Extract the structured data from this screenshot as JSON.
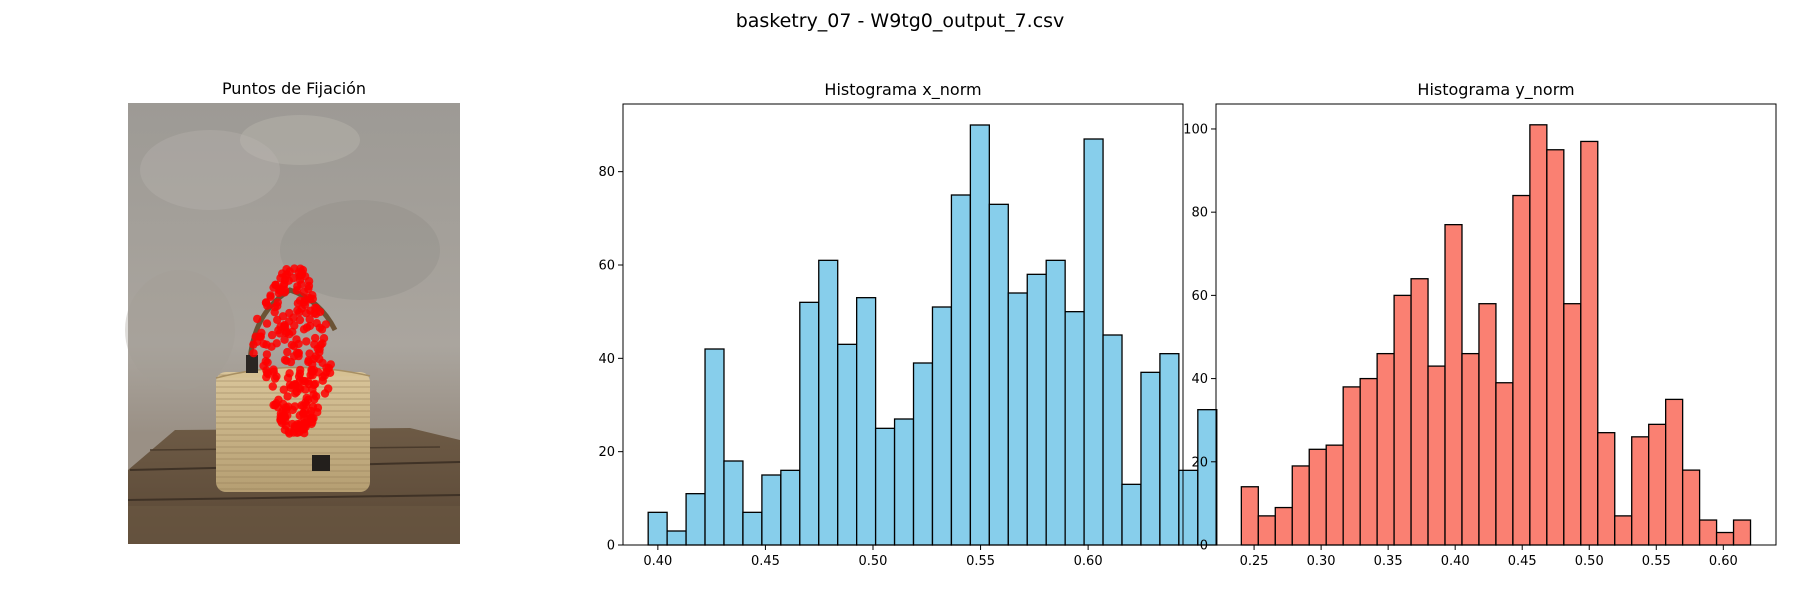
{
  "figure": {
    "suptitle": "basketry_07 - W9tg0_output_7.csv"
  },
  "image_panel": {
    "title": "Puntos de Fijación"
  },
  "chart_data": [
    {
      "type": "bar",
      "title": "Histograma x_norm",
      "xlabel": "",
      "ylabel": "",
      "color": "#87CEEB",
      "edge_color": "#000000",
      "bin_start": 0.3955,
      "bin_width": 0.00881,
      "values": [
        7,
        3,
        11,
        42,
        18,
        7,
        15,
        16,
        52,
        61,
        43,
        53,
        25,
        27,
        39,
        51,
        75,
        90,
        73,
        54,
        58,
        61,
        50,
        87,
        45,
        13,
        37,
        41,
        16,
        29
      ],
      "xlim": [
        0.3838,
        0.6441
      ],
      "ylim": [
        0,
        94.5
      ],
      "xticks": [
        0.4,
        0.45,
        0.5,
        0.55,
        0.6
      ],
      "xtick_labels": [
        "0.40",
        "0.45",
        "0.50",
        "0.55",
        "0.60"
      ],
      "yticks": [
        0,
        20,
        40,
        60,
        80
      ],
      "ytick_labels": [
        "0",
        "20",
        "40",
        "60",
        "80"
      ],
      "grid": false
    },
    {
      "type": "bar",
      "title": "Histograma y_norm",
      "xlabel": "",
      "ylabel": "",
      "color": "#FA8072",
      "edge_color": "#000000",
      "bin_start": 0.2405,
      "bin_width": 0.01266,
      "values": [
        14,
        7,
        9,
        19,
        23,
        24,
        38,
        40,
        46,
        60,
        64,
        43,
        77,
        46,
        58,
        39,
        84,
        101,
        95,
        58,
        97,
        27,
        7,
        26,
        29,
        35,
        18,
        6,
        3,
        6
      ],
      "xlim": [
        0.2216,
        0.6393
      ],
      "ylim": [
        0,
        106
      ],
      "xticks": [
        0.25,
        0.3,
        0.35,
        0.4,
        0.45,
        0.5,
        0.55,
        0.6
      ],
      "xtick_labels": [
        "0.25",
        "0.30",
        "0.35",
        "0.40",
        "0.45",
        "0.50",
        "0.55",
        "0.60"
      ],
      "yticks": [
        0,
        20,
        40,
        60,
        80,
        100
      ],
      "ytick_labels": [
        "0",
        "20",
        "40",
        "60",
        "80",
        "100"
      ],
      "grid": false
    }
  ]
}
